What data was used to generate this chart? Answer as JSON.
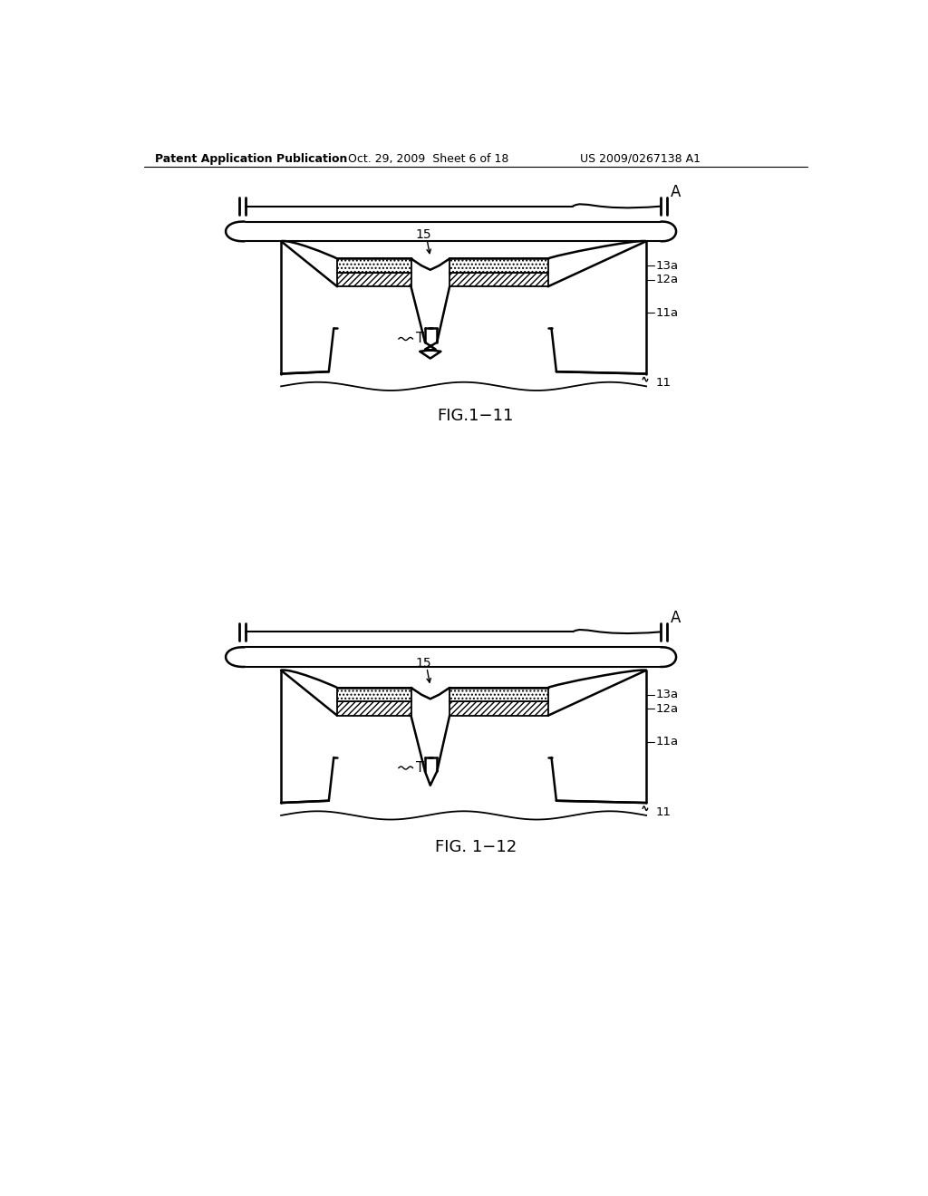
{
  "bg_color": "#ffffff",
  "header_left": "Patent Application Publication",
  "header_mid": "Oct. 29, 2009  Sheet 6 of 18",
  "header_right": "US 2009/0267138 A1",
  "fig1_label": "FIG.1−11",
  "fig2_label": "FIG. 1−12",
  "line_color": "#000000"
}
